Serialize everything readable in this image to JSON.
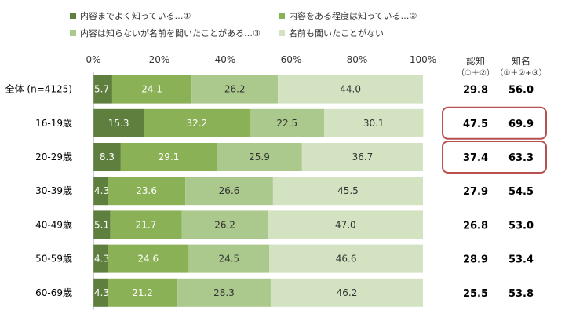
{
  "legend": [
    {
      "label": "内容までよく知っている…①",
      "color": "#5f7f3e"
    },
    {
      "label": "内容をある程度は知っている…②",
      "color": "#8bb157"
    },
    {
      "label": "内容は知らないが名前を聞いたことがある…③",
      "color": "#abc98c"
    },
    {
      "label": "名前も聞いたことがない",
      "color": "#d3e3c2"
    }
  ],
  "stats_header": {
    "col1_title": "認知",
    "col1_sub": "（①＋②）",
    "col2_title": "知名",
    "col2_sub": "（①＋②+③）"
  },
  "chart_data": {
    "type": "bar",
    "orientation": "horizontal-stacked-100",
    "xlim": [
      0,
      100
    ],
    "x_ticks": [
      "0%",
      "20%",
      "40%",
      "60%",
      "80%",
      "100%"
    ],
    "categories": [
      "全体 (n=4125)",
      "16-19歳",
      "20-29歳",
      "30-39歳",
      "40-49歳",
      "50-59歳",
      "60-69歳"
    ],
    "series": [
      {
        "name": "内容までよく知っている…①",
        "values": [
          5.7,
          15.3,
          8.3,
          4.3,
          5.1,
          4.3,
          4.3
        ]
      },
      {
        "name": "内容をある程度は知っている…②",
        "values": [
          24.1,
          32.2,
          29.1,
          23.6,
          21.7,
          24.6,
          21.2
        ]
      },
      {
        "name": "内容は知らないが名前を聞いたことがある…③",
        "values": [
          26.2,
          22.5,
          25.9,
          26.6,
          26.2,
          24.5,
          28.3
        ]
      },
      {
        "name": "名前も聞いたことがない",
        "values": [
          44.0,
          30.1,
          36.7,
          45.5,
          47.0,
          46.6,
          46.2
        ]
      }
    ],
    "recognition": [
      "29.8",
      "47.5",
      "37.4",
      "27.9",
      "26.8",
      "28.9",
      "25.5"
    ],
    "awareness": [
      "56.0",
      "69.9",
      "63.3",
      "54.5",
      "53.0",
      "53.4",
      "53.8"
    ],
    "highlighted_rows": [
      1,
      2
    ],
    "highlight_color": "#b85050"
  }
}
